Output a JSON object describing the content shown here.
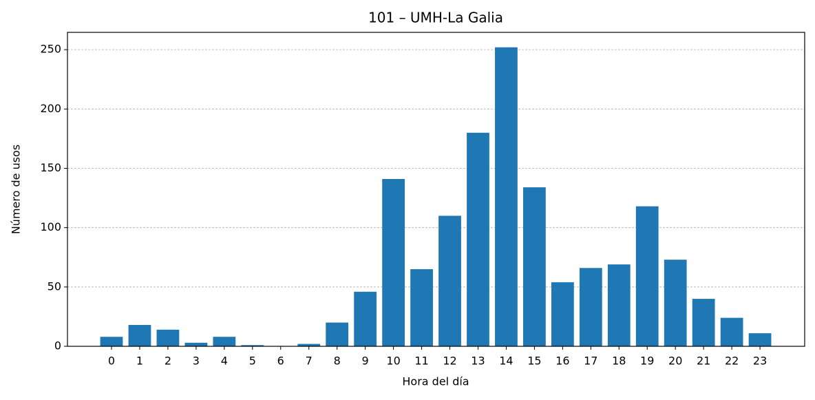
{
  "chart_data": {
    "type": "bar",
    "title": "101 – UMH-La Galia",
    "x_label": "Hora del día",
    "y_label": "Número de usos",
    "categories": [
      "0",
      "1",
      "2",
      "3",
      "4",
      "5",
      "6",
      "7",
      "8",
      "9",
      "10",
      "11",
      "12",
      "13",
      "14",
      "15",
      "16",
      "17",
      "18",
      "19",
      "20",
      "21",
      "22",
      "23"
    ],
    "values": [
      8,
      18,
      14,
      3,
      8,
      1,
      0,
      2,
      20,
      46,
      141,
      65,
      110,
      180,
      252,
      134,
      54,
      66,
      69,
      118,
      73,
      40,
      24,
      11
    ],
    "color": "#1f77b4",
    "ylim": [
      0,
      264.6
    ],
    "yticks": [
      0,
      50,
      100,
      150,
      200,
      250
    ],
    "grid": true
  }
}
